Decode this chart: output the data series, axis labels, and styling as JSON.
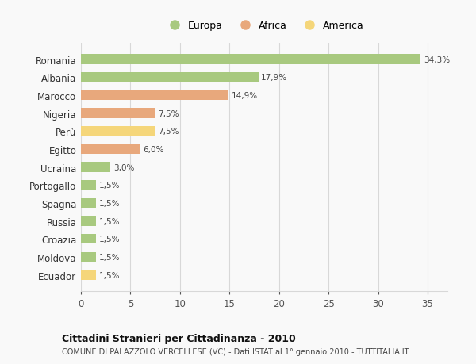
{
  "countries": [
    "Romania",
    "Albania",
    "Marocco",
    "Nigeria",
    "Perù",
    "Egitto",
    "Ucraina",
    "Portogallo",
    "Spagna",
    "Russia",
    "Croazia",
    "Moldova",
    "Ecuador"
  ],
  "values": [
    34.3,
    17.9,
    14.9,
    7.5,
    7.5,
    6.0,
    3.0,
    1.5,
    1.5,
    1.5,
    1.5,
    1.5,
    1.5
  ],
  "labels": [
    "34,3%",
    "17,9%",
    "14,9%",
    "7,5%",
    "7,5%",
    "6,0%",
    "3,0%",
    "1,5%",
    "1,5%",
    "1,5%",
    "1,5%",
    "1,5%",
    "1,5%"
  ],
  "continents": [
    "Europa",
    "Europa",
    "Africa",
    "Africa",
    "America",
    "Africa",
    "Europa",
    "Europa",
    "Europa",
    "Europa",
    "Europa",
    "Europa",
    "America"
  ],
  "colors": {
    "Europa": "#a8c97f",
    "Africa": "#e8a87c",
    "America": "#f5d67a"
  },
  "xlim": [
    0,
    37
  ],
  "xticks": [
    0,
    5,
    10,
    15,
    20,
    25,
    30,
    35
  ],
  "title": "Cittadini Stranieri per Cittadinanza - 2010",
  "subtitle": "COMUNE DI PALAZZOLO VERCELLESE (VC) - Dati ISTAT al 1° gennaio 2010 - TUTTITALIA.IT",
  "background_color": "#f9f9f9",
  "grid_color": "#d8d8d8",
  "bar_height": 0.55,
  "legend_order": [
    "Europa",
    "Africa",
    "America"
  ]
}
